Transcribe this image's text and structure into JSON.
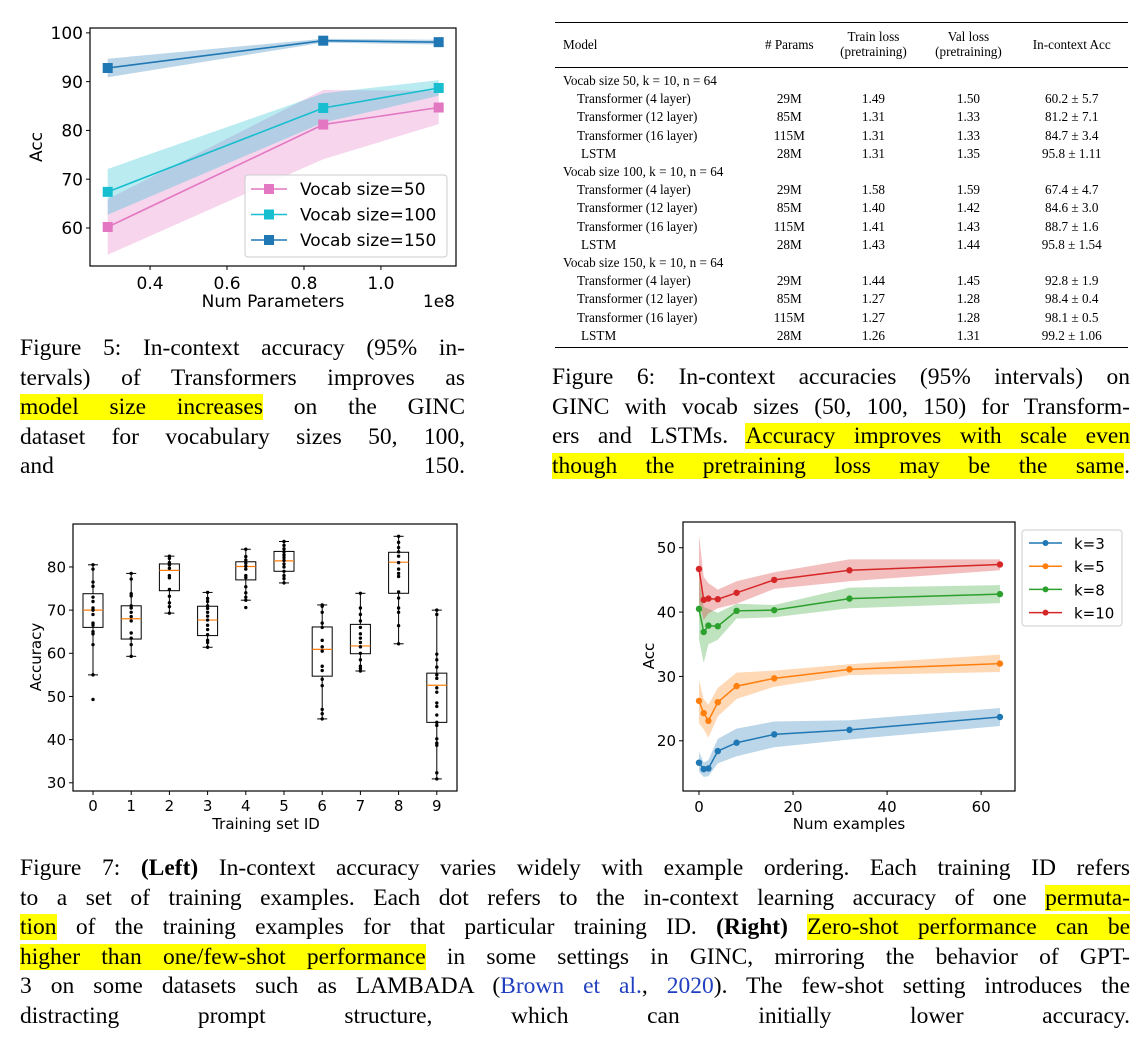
{
  "figure5": {
    "caption": [
      [
        {
          "t": "n",
          "v": "Figure 5: In-context accuracy (95% in-"
        }
      ],
      [
        {
          "t": "n",
          "v": "tervals) of Transformers improves as"
        }
      ],
      [
        {
          "t": "h",
          "v": "model size increases"
        },
        {
          "t": "n",
          "v": " on the GINC"
        }
      ],
      [
        {
          "t": "n",
          "v": "dataset for vocabulary sizes 50, 100,"
        }
      ],
      [
        {
          "t": "n",
          "v": "and 150."
        }
      ]
    ]
  },
  "figure6": {
    "caption": [
      [
        {
          "t": "n",
          "v": "Figure 6: In-context accuracies (95% intervals) on"
        }
      ],
      [
        {
          "t": "n",
          "v": "GINC with vocab sizes (50, 100, 150) for Transform-"
        }
      ],
      [
        {
          "t": "n",
          "v": "ers and LSTMs. "
        },
        {
          "t": "h",
          "v": "Accuracy improves with scale even"
        }
      ],
      [
        {
          "t": "h",
          "v": "though the pretraining loss may be the same"
        },
        {
          "t": "n",
          "v": "."
        }
      ]
    ],
    "table": {
      "headers": [
        "Model",
        "# Params",
        "Train loss (pretraining)",
        "Val loss (pretraining)",
        "In-context Acc"
      ],
      "groups": [
        {
          "title": "Vocab size 50, k = 10, n = 64",
          "rows": [
            [
              "Transformer (4 layer)",
              "29M",
              "1.49",
              "1.50",
              "60.2 ± 5.7"
            ],
            [
              "Transformer (12 layer)",
              "85M",
              "1.31",
              "1.33",
              "81.2 ± 7.1"
            ],
            [
              "Transformer (16 layer)",
              "115M",
              "1.31",
              "1.33",
              "84.7 ± 3.4"
            ],
            [
              "LSTM",
              "28M",
              "1.31",
              "1.35",
              "95.8 ± 1.11"
            ]
          ]
        },
        {
          "title": "Vocab size 100, k = 10, n = 64",
          "rows": [
            [
              "Transformer (4 layer)",
              "29M",
              "1.58",
              "1.59",
              "67.4 ± 4.7"
            ],
            [
              "Transformer (12 layer)",
              "85M",
              "1.40",
              "1.42",
              "84.6 ± 3.0"
            ],
            [
              "Transformer (16 layer)",
              "115M",
              "1.41",
              "1.43",
              "88.7 ± 1.6"
            ],
            [
              "LSTM",
              "28M",
              "1.43",
              "1.44",
              "95.8 ± 1.54"
            ]
          ]
        },
        {
          "title": "Vocab size 150, k = 10, n = 64",
          "rows": [
            [
              "Transformer (4 layer)",
              "29M",
              "1.44",
              "1.45",
              "92.8 ± 1.9"
            ],
            [
              "Transformer (12 layer)",
              "85M",
              "1.27",
              "1.28",
              "98.4 ± 0.4"
            ],
            [
              "Transformer (16 layer)",
              "115M",
              "1.27",
              "1.28",
              "98.1 ± 0.5"
            ],
            [
              "LSTM",
              "28M",
              "1.26",
              "1.31",
              "99.2 ± 1.06"
            ]
          ]
        }
      ]
    }
  },
  "figure7": {
    "caption": [
      [
        {
          "t": "n",
          "v": "Figure 7: "
        },
        {
          "t": "b",
          "v": "(Left)"
        },
        {
          "t": "n",
          "v": " In-context accuracy varies widely with example ordering. Each training ID refers"
        }
      ],
      [
        {
          "t": "n",
          "v": "to a set of training examples. Each dot refers to the in-context learning accuracy of one "
        },
        {
          "t": "h",
          "v": "permuta-"
        }
      ],
      [
        {
          "t": "h",
          "v": "tion"
        },
        {
          "t": "n",
          "v": " of the training examples for that particular training ID. "
        },
        {
          "t": "b",
          "v": "(Right)"
        },
        {
          "t": "n",
          "v": " "
        },
        {
          "t": "h",
          "v": "Zero-shot performance can be"
        }
      ],
      [
        {
          "t": "h",
          "v": "higher than one/few-shot performance"
        },
        {
          "t": "n",
          "v": " in some settings in GINC, mirroring the behavior of GPT-"
        }
      ],
      [
        {
          "t": "n",
          "v": "3 on some datasets such as LAMBADA ("
        },
        {
          "t": "l",
          "v": "Brown et al."
        },
        {
          "t": "n",
          "v": ", "
        },
        {
          "t": "l",
          "v": "2020"
        },
        {
          "t": "n",
          "v": "). The few-shot setting introduces the"
        }
      ],
      [
        {
          "t": "n",
          "v": "distracting prompt structure, which can initially lower accuracy."
        }
      ]
    ]
  },
  "colors": {
    "highlight": "#ffff00",
    "link": "#1f3fbf"
  },
  "chart_data": [
    {
      "type": "line",
      "xlabel": "Num Parameters",
      "ylabel": "Acc",
      "x_offset_label": "1e8",
      "xlim": [
        0.244,
        1.195
      ],
      "ylim": [
        52.2,
        101
      ],
      "xticks": [
        0.4,
        0.6,
        0.8,
        1.0
      ],
      "xtick_labels": [
        "0.4",
        "0.6",
        "0.8",
        "1.0"
      ],
      "yticks": [
        60,
        70,
        80,
        90,
        100
      ],
      "ytick_labels": [
        "60",
        "70",
        "80",
        "90",
        "100"
      ],
      "legend_position": "lower-right",
      "x": [
        0.29,
        0.85,
        1.15
      ],
      "series": [
        {
          "name": "Vocab size=50",
          "color": "#e377c2",
          "values": [
            60.2,
            81.2,
            84.7
          ],
          "ci": [
            5.7,
            7.1,
            3.4
          ]
        },
        {
          "name": "Vocab size=100",
          "color": "#17becf",
          "values": [
            67.4,
            84.6,
            88.7
          ],
          "ci": [
            4.7,
            3.0,
            1.6
          ]
        },
        {
          "name": "Vocab size=150",
          "color": "#1f77b4",
          "values": [
            92.8,
            98.4,
            98.1
          ],
          "ci": [
            1.9,
            0.4,
            0.5
          ]
        }
      ]
    },
    {
      "type": "box",
      "xlabel": "Training set ID",
      "ylabel": "Accuracy",
      "ylim": [
        28.1,
        89.95
      ],
      "yticks": [
        30,
        40,
        50,
        60,
        70,
        80
      ],
      "ytick_labels": [
        "30",
        "40",
        "50",
        "60",
        "70",
        "80"
      ],
      "categories": [
        "0",
        "1",
        "2",
        "3",
        "4",
        "5",
        "6",
        "7",
        "8",
        "9"
      ],
      "boxes": [
        {
          "whislo": 55,
          "q1": 66,
          "med": 70,
          "q3": 73.8,
          "whishi": 80.5,
          "fliers": [
            49.3
          ],
          "points": [
            80.5,
            79.5,
            76.5,
            75.5,
            73,
            72,
            70.5,
            70,
            69,
            67,
            66.5,
            65,
            64.5,
            62,
            55,
            49.3
          ]
        },
        {
          "whislo": 59.3,
          "q1": 63.3,
          "med": 68,
          "q3": 71,
          "whishi": 78.5,
          "fliers": [],
          "points": [
            78.5,
            77.2,
            73.8,
            73.3,
            71,
            70.5,
            69.5,
            68.5,
            67.5,
            64.7,
            63.5,
            62,
            59.3
          ]
        },
        {
          "whislo": 69.3,
          "q1": 74.5,
          "med": 79.2,
          "q3": 80.7,
          "whishi": 82.5,
          "fliers": [],
          "points": [
            82.5,
            82,
            81,
            80.5,
            79.7,
            78,
            77.5,
            74.8,
            73.2,
            71.7,
            70.8,
            69.3
          ]
        },
        {
          "whislo": 61.4,
          "q1": 64.1,
          "med": 67.7,
          "q3": 70.9,
          "whishi": 74.1,
          "fliers": [],
          "points": [
            74.1,
            72.7,
            72,
            71,
            70.4,
            69.5,
            68.6,
            67.7,
            66.5,
            65.5,
            64.3,
            63,
            62.5,
            61.4
          ]
        },
        {
          "whislo": 72.3,
          "q1": 77,
          "med": 80.1,
          "q3": 81.2,
          "whishi": 84.1,
          "fliers": [
            70.6
          ],
          "points": [
            84.1,
            82.4,
            81.6,
            80.9,
            80.2,
            79.5,
            78,
            77.5,
            75.4,
            74,
            73,
            72.3,
            70.6
          ]
        },
        {
          "whislo": 76.3,
          "q1": 79,
          "med": 81.4,
          "q3": 83.6,
          "whishi": 85.9,
          "fliers": [],
          "points": [
            85.9,
            85,
            84.2,
            83.5,
            82.8,
            82.2,
            81.5,
            80.7,
            80,
            79,
            78,
            77.3,
            76.3
          ]
        },
        {
          "whislo": 44.8,
          "q1": 54.7,
          "med": 60.9,
          "q3": 66.1,
          "whishi": 71.2,
          "fliers": [],
          "points": [
            71.2,
            70.9,
            69.5,
            67,
            66,
            63,
            61.5,
            60.5,
            57,
            56,
            54,
            52.5,
            47,
            46,
            44.8
          ]
        },
        {
          "whislo": 55.9,
          "q1": 59.9,
          "med": 61.7,
          "q3": 66.7,
          "whishi": 73.9,
          "fliers": [],
          "points": [
            73.9,
            70.5,
            69,
            67.5,
            66,
            64.5,
            63.5,
            62.5,
            61.5,
            60,
            58.5,
            57,
            56.5,
            55.9
          ]
        },
        {
          "whislo": 62.2,
          "q1": 73.9,
          "med": 81.1,
          "q3": 83.4,
          "whishi": 87.1,
          "fliers": [],
          "points": [
            87.1,
            85.7,
            84.5,
            83.5,
            82.5,
            81,
            79.5,
            78.5,
            77.8,
            74.2,
            72.8,
            70.5,
            69.5,
            66.4,
            62.2
          ]
        },
        {
          "whislo": 30.9,
          "q1": 44,
          "med": 52.6,
          "q3": 55.4,
          "whishi": 70,
          "fliers": [],
          "points": [
            70,
            69,
            59.8,
            58.5,
            56.8,
            55,
            54.2,
            52,
            51,
            48.5,
            47.7,
            45.7,
            44,
            43.3,
            40.2,
            39.2,
            38.7,
            32.3,
            30.9
          ]
        }
      ],
      "median_color": "#ff7f0e"
    },
    {
      "type": "line",
      "xlabel": "Num examples",
      "ylabel": "Acc",
      "xlim": [
        -3.4,
        67.2
      ],
      "ylim": [
        12.2,
        54
      ],
      "xticks": [
        0,
        20,
        40,
        60
      ],
      "xtick_labels": [
        "0",
        "20",
        "40",
        "60"
      ],
      "yticks": [
        20,
        30,
        40,
        50
      ],
      "ytick_labels": [
        "20",
        "30",
        "40",
        "50"
      ],
      "legend_position": "outside-right",
      "x": [
        0,
        1,
        2,
        4,
        8,
        16,
        32,
        64
      ],
      "series": [
        {
          "name": "k=3",
          "color": "#1f77b4",
          "values": [
            16.6,
            15.6,
            15.7,
            18.4,
            19.7,
            21.0,
            21.7,
            23.7
          ],
          "lower": [
            15.2,
            14.4,
            14.5,
            16.5,
            17.6,
            19,
            20.2,
            22.3
          ],
          "upper": [
            18.3,
            16.6,
            17,
            20.3,
            21.9,
            23,
            23.2,
            25.1
          ]
        },
        {
          "name": "k=5",
          "color": "#ff7f0e",
          "values": [
            26.2,
            24.3,
            23.1,
            26.0,
            28.5,
            29.7,
            31.1,
            32.0
          ],
          "lower": [
            22.7,
            21.8,
            20.5,
            23.8,
            26.5,
            28.4,
            30.2,
            30.7
          ],
          "upper": [
            29.4,
            26.5,
            25.6,
            28.2,
            30.6,
            30.9,
            31.9,
            33.4
          ]
        },
        {
          "name": "k=8",
          "color": "#2ca02c",
          "values": [
            40.5,
            36.9,
            37.9,
            37.8,
            40.2,
            40.3,
            42.1,
            42.8
          ],
          "lower": [
            35.7,
            32.1,
            35,
            35.7,
            39,
            39.2,
            40.6,
            41.4
          ],
          "upper": [
            45.4,
            40.8,
            40.5,
            39.9,
            41.3,
            41.1,
            43.8,
            44.2
          ]
        },
        {
          "name": "k=10",
          "color": "#d62728",
          "values": [
            46.7,
            41.9,
            42.1,
            42.0,
            43.0,
            45.0,
            46.5,
            47.4
          ],
          "lower": [
            41.5,
            38.8,
            39.8,
            40.6,
            41.3,
            43.6,
            44.8,
            46.5
          ],
          "upper": [
            52,
            45.5,
            44.5,
            43.5,
            44.8,
            46.2,
            48.2,
            48.2
          ]
        }
      ]
    }
  ]
}
